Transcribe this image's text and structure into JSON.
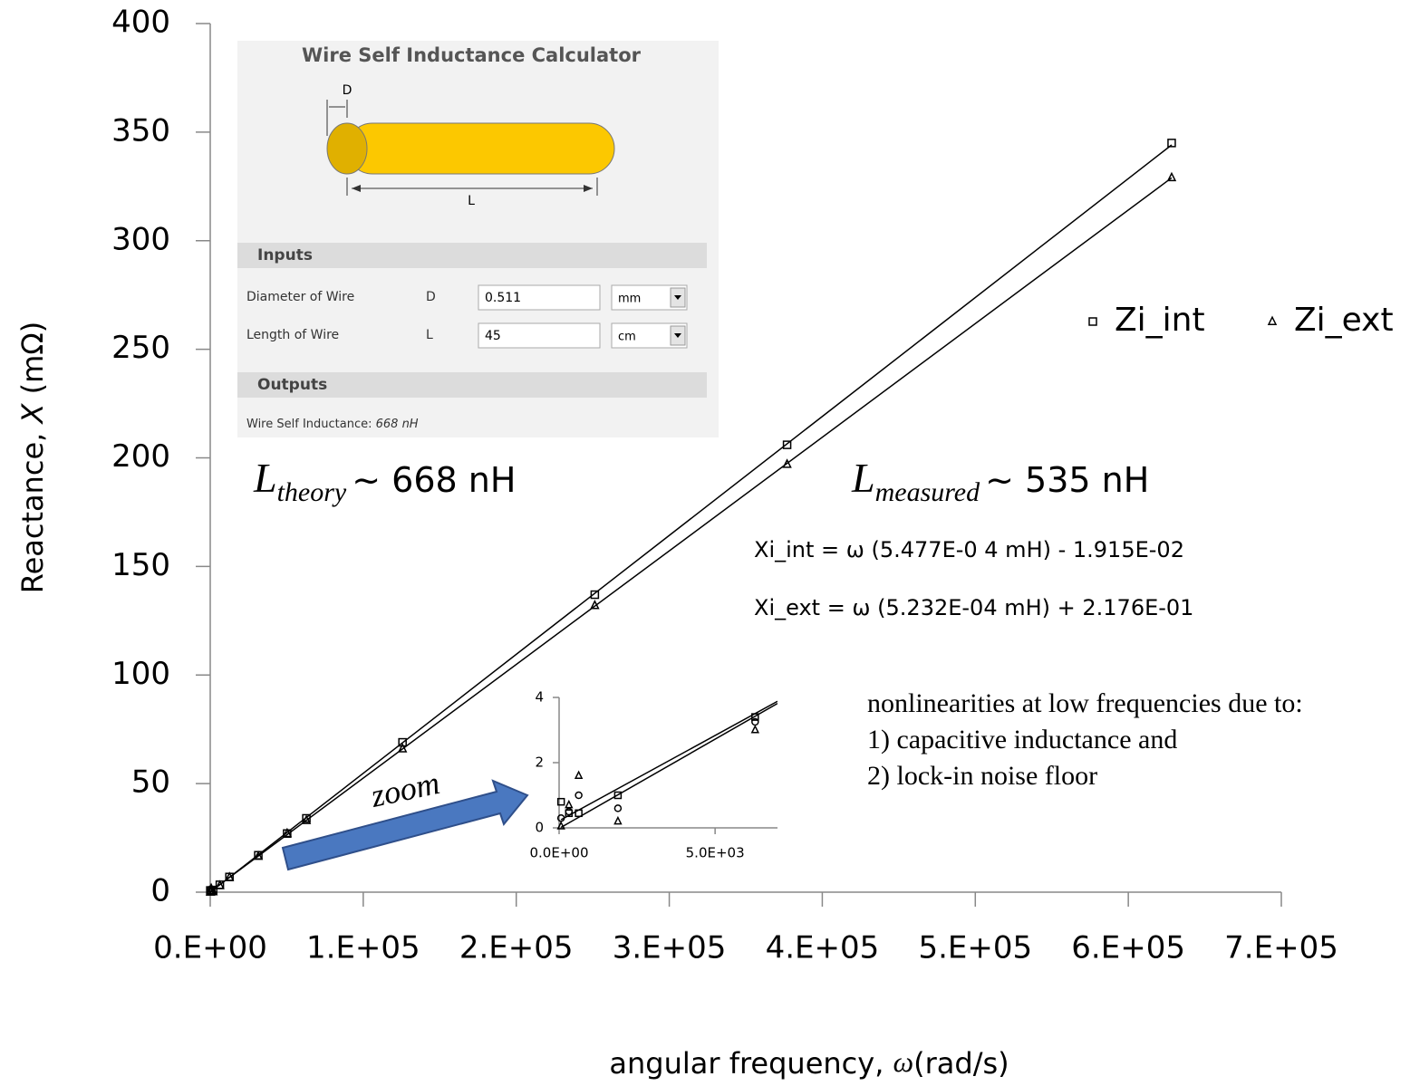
{
  "chart_data": [
    {
      "type": "scatter",
      "x_label": [
        "angular frequency, ",
        "ω",
        "(rad/s)"
      ],
      "y_label": [
        "Reactance, ",
        "X",
        " (mΩ)"
      ],
      "x": [
        62.8,
        314,
        628,
        1885,
        6283,
        12566,
        31416,
        50265,
        62832,
        125664,
        251327,
        376991,
        628319
      ],
      "series": [
        {
          "name": "Zi_int",
          "color": "#000000",
          "marker": "square",
          "values": [
            0.8,
            0.45,
            0.45,
            1.0,
            3.4,
            7,
            17,
            27,
            34,
            69,
            137,
            206,
            345
          ],
          "trendline": {
            "slope": 0.0005477,
            "intercept": -0.01915
          }
        },
        {
          "name": "Zi_ext",
          "color": "#000000",
          "marker": "triangle",
          "values": [
            0.05,
            0.7,
            1.6,
            0.2,
            3.0,
            6.8,
            16.5,
            27,
            33,
            66,
            132,
            197,
            329
          ],
          "trendline": {
            "slope": 0.0005232,
            "intercept": 0.2176
          }
        }
      ],
      "xlim": [
        0,
        700000
      ],
      "xticks": [
        {
          "value": 0,
          "label": "0.E+00"
        },
        {
          "value": 100000,
          "label": "1.E+05"
        },
        {
          "value": 200000,
          "label": "2.E+05"
        },
        {
          "value": 300000,
          "label": "3.E+05"
        },
        {
          "value": 400000,
          "label": "4.E+05"
        },
        {
          "value": 500000,
          "label": "5.E+05"
        },
        {
          "value": 600000,
          "label": "6.E+05"
        },
        {
          "value": 700000,
          "label": "7.E+05"
        }
      ],
      "ylim": [
        0,
        400
      ],
      "yticks": [
        0,
        50,
        100,
        150,
        200,
        250,
        300,
        350,
        400
      ],
      "legend": "upper right",
      "annotations": {
        "theory": [
          "L",
          "theory",
          "~ 668 nH"
        ],
        "measured": [
          "L",
          "measured",
          "~ 535 nH"
        ],
        "equations": [
          "Xi_int = ω (5.477E-0 4 mH) - 1.915E-02",
          "Xi_ext = ω (5.232E-04 mH) + 2.176E-01"
        ],
        "note": [
          "nonlinearities at low frequencies due to:",
          "1) capacitive inductance and",
          "2) lock-in noise floor"
        ],
        "zoom": "zoom"
      }
    },
    {
      "type": "scatter",
      "x": [
        62.8,
        314,
        628,
        1885,
        6283
      ],
      "series": [
        {
          "color": "#000000",
          "marker": "square",
          "values": [
            0.8,
            0.45,
            0.45,
            1.0,
            3.4
          ],
          "trendline": {
            "slope": 0.0005477,
            "intercept": -0.01915
          }
        },
        {
          "color": "#000000",
          "marker": "triangle",
          "values": [
            0.05,
            0.7,
            1.6,
            0.2,
            3.0
          ],
          "trendline": {
            "slope": 0.0005232,
            "intercept": 0.2176
          }
        },
        {
          "color": "#000000",
          "marker": "circle",
          "values": [
            0.3,
            0.5,
            1.0,
            0.6,
            3.25
          ]
        }
      ],
      "xlim": [
        0,
        7000
      ],
      "xticks": [
        {
          "value": 0,
          "label": "0.0E+00"
        },
        {
          "value": 5000,
          "label": "5.0E+03"
        }
      ],
      "ylim": [
        0,
        4
      ],
      "yticks": [
        0,
        2,
        4
      ]
    }
  ],
  "calculator": {
    "title": "Wire Self Inductance Calculator",
    "diagram": {
      "d": "D",
      "l": "L"
    },
    "inputs_header": "Inputs",
    "rows": [
      {
        "label": "Diameter of Wire",
        "symbol": "D",
        "value": "0.511",
        "unit": "mm"
      },
      {
        "label": "Length of Wire",
        "symbol": "L",
        "value": "45",
        "unit": "cm"
      }
    ],
    "outputs_header": "Outputs",
    "output": {
      "label": "Wire Self Inductance: ",
      "value": "668 nH"
    }
  }
}
